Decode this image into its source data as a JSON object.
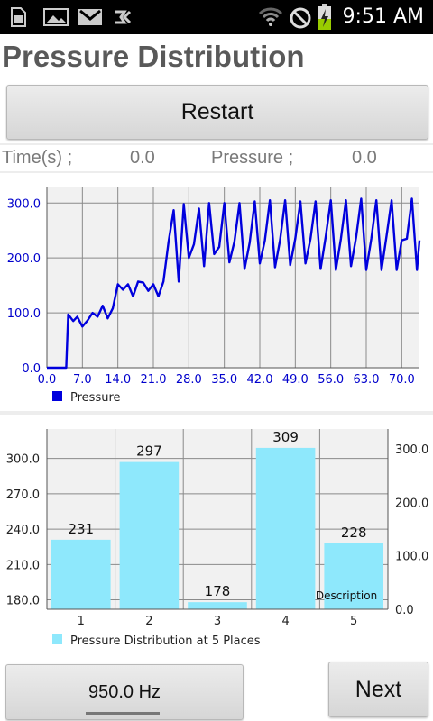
{
  "status_bar": {
    "time": "9:51 AM",
    "icons": [
      "sim-card-icon",
      "image-icon",
      "gmail-icon",
      "usb-debug-icon",
      "wifi-icon",
      "no-sim-icon",
      "battery-charging-icon"
    ]
  },
  "header": {
    "title": "Pressure Distribution"
  },
  "controls": {
    "restart_label": "Restart"
  },
  "readout": {
    "time_label": "Time(s) ;",
    "time_value": "0.0",
    "pressure_label": "Pressure ;",
    "pressure_value": "0.0"
  },
  "colors": {
    "line": "#0000dd",
    "bar": "#8ee8fc",
    "axis_text": "#0000cc",
    "plot_bg": "#f1f1f1",
    "grid": "#8a8a8a"
  },
  "chart_data": [
    {
      "type": "line",
      "title": "",
      "xlabel": "",
      "ylabel": "",
      "xlim": [
        0,
        73.5
      ],
      "ylim": [
        0,
        330
      ],
      "x_ticks": [
        "0.0",
        "7.0",
        "14.0",
        "21.0",
        "28.0",
        "35.0",
        "42.0",
        "49.0",
        "56.0",
        "63.0",
        "70.0"
      ],
      "y_ticks": [
        "0.0",
        "100.0",
        "200.0",
        "300.0"
      ],
      "legend": {
        "placement": "bottom-left"
      },
      "grid": true,
      "series": [
        {
          "name": "Pressure",
          "x": [
            0,
            1,
            2,
            3,
            3.8,
            4.2,
            5.2,
            6,
            7,
            8,
            9,
            10,
            11,
            12,
            13,
            14,
            15,
            16,
            17,
            18,
            19,
            20,
            21,
            22,
            23,
            24,
            25,
            26,
            27,
            28,
            29,
            30,
            31,
            32,
            33,
            34,
            35,
            36,
            37,
            38,
            39,
            40,
            41,
            42,
            43,
            44,
            45,
            46,
            47,
            48,
            49,
            50,
            51,
            52,
            53,
            54,
            55,
            56,
            57,
            58,
            59,
            60,
            61,
            62,
            63,
            64,
            65,
            66,
            67,
            68,
            69,
            70,
            71,
            72,
            73,
            73.5
          ],
          "values": [
            0,
            0,
            0,
            0,
            0,
            97,
            85,
            93,
            75,
            86,
            100,
            93,
            113,
            90,
            108,
            152,
            142,
            152,
            130,
            157,
            155,
            140,
            152,
            130,
            157,
            230,
            287,
            157,
            298,
            200,
            225,
            290,
            185,
            300,
            207,
            220,
            300,
            192,
            230,
            300,
            180,
            228,
            303,
            190,
            232,
            305,
            183,
            233,
            305,
            187,
            235,
            303,
            190,
            235,
            303,
            180,
            238,
            305,
            178,
            235,
            305,
            185,
            238,
            308,
            178,
            235,
            305,
            178,
            240,
            305,
            178,
            232,
            235,
            308,
            178,
            232
          ]
        }
      ]
    },
    {
      "type": "bar",
      "title": "",
      "xlabel": "",
      "ylabel": "",
      "categories": [
        "1",
        "2",
        "3",
        "4",
        "5"
      ],
      "ylim": [
        172,
        325
      ],
      "y_ticks": [
        "180.0",
        "210.0",
        "240.0",
        "270.0",
        "300.0"
      ],
      "y2_ticks": [
        "0.0",
        "100.0",
        "200.0",
        "300.0"
      ],
      "grid": true,
      "legend": {
        "placement": "bottom-left"
      },
      "annotation": "Description",
      "series": [
        {
          "name": "Pressure Distribution at 5 Places",
          "values": [
            231,
            297,
            178,
            309,
            228
          ],
          "labels": [
            "231",
            "297",
            "178",
            "309",
            "228"
          ]
        }
      ]
    }
  ],
  "footer": {
    "frequency_label": "950.0 Hz",
    "next_label": "Next"
  }
}
